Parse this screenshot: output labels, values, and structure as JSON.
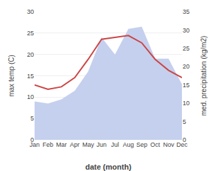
{
  "chart_data": {
    "type": "line",
    "xlabel": "date (month)",
    "ylabel": "max temp (C)",
    "y2label": "med. precipitation (kg/m2)",
    "categories": [
      "Jan",
      "Feb",
      "Mar",
      "Apr",
      "May",
      "Jun",
      "Jul",
      "Aug",
      "Sep",
      "Oct",
      "Nov",
      "Dec"
    ],
    "series": [
      {
        "type": "area",
        "color": "#c5d0ee",
        "values": [
          9.0,
          8.5,
          9.5,
          11.5,
          16.0,
          24.0,
          20.0,
          26.0,
          26.5,
          19.0,
          19.0,
          13.0
        ]
      },
      {
        "type": "line",
        "color": "#cc4444",
        "axis": "y2",
        "values": [
          15.0,
          13.8,
          14.5,
          17.0,
          22.0,
          27.5,
          28.0,
          28.5,
          26.5,
          22.0,
          19.0,
          17.0
        ]
      }
    ],
    "ylim": [
      0,
      30
    ],
    "yticks": [
      0,
      5,
      10,
      15,
      20,
      25,
      30
    ],
    "y2lim": [
      0,
      35
    ],
    "y2ticks": [
      0,
      5,
      10,
      15,
      20,
      25,
      30,
      35
    ],
    "grid": true
  }
}
